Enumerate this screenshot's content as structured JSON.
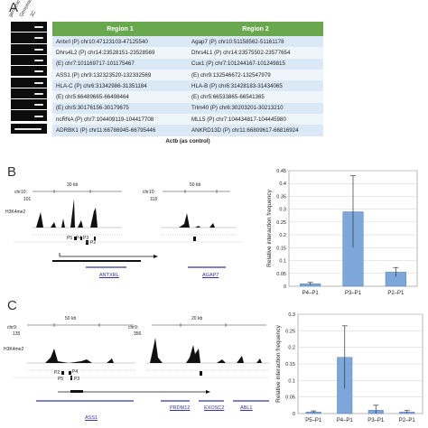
{
  "panel_a": {
    "letter": "A",
    "gel_lanes": [
      "genomic",
      "Genomic control",
      "3C"
    ],
    "table": {
      "headers": [
        "Region 1",
        "Region 2"
      ],
      "rows": [
        [
          "Antxrl (P) chr10:47123103-47125540",
          "Agap7 (P) chr10:51158562-51161178"
        ],
        [
          "Dhrs4L2 (P) chr14:23528151-23528569",
          "Dhrs4L1 (P) chr14:23575502-23577654"
        ],
        [
          "(E) chr7:101169717-101175467",
          "Cux1 (P) chr7:101244167-101249815"
        ],
        [
          "ASS1 (P) chr9:132323520-132332569",
          "(E) chr9:132546672-132547979"
        ],
        [
          "HLA-C (P) chr6:31342986-31351184",
          "HLA-B (P) chr6:31428183-31434065"
        ],
        [
          "(E) chr5:66489665-66498464",
          "(E) chr5:66533865-66541365"
        ],
        [
          "(E) chr5:30176156-30179675",
          "Trim40 (P) chr6:30203201-30213210"
        ],
        [
          "ncRNA (P) chr7:104409119-104417708",
          "MLL5 (P) chr7:104434817-104445980"
        ],
        [
          "ADRBK1 (P) chr11:66786945-66795446",
          "ANKRD13D (P) chr11:66809617-66816924"
        ]
      ],
      "footer": "Actb (as control)"
    }
  },
  "panel_b": {
    "letter": "B",
    "track1": {
      "chr": "chr10:",
      "max": "101",
      "scale": "30 kb",
      "mark": "H3K4me2"
    },
    "track2": {
      "chr": "chr10:",
      "max": "118",
      "scale": "50 kb"
    },
    "probes": [
      "P5",
      "P4",
      "P3",
      "P2"
    ],
    "genes": [
      "ANTXRL",
      "AGAP7"
    ]
  },
  "panel_c": {
    "letter": "C",
    "track1": {
      "chr": "chr9:",
      "max": "135",
      "scale": "50 kb",
      "mark": "H3K4me2"
    },
    "track2": {
      "chr": "chr9:",
      "max": "356",
      "scale": "20 kb"
    },
    "probes": [
      "P2",
      "P4",
      "P5",
      "P3"
    ],
    "genes": [
      "ASS1",
      "PRDM12",
      "EXOSC2",
      "ABL1"
    ]
  },
  "chart_data": [
    {
      "type": "bar",
      "categories": [
        "P4–P1",
        "P3–P1",
        "P2–P1"
      ],
      "values": [
        0.01,
        0.29,
        0.055
      ],
      "errors": [
        0.005,
        0.14,
        0.018
      ],
      "ylabel": "Relative interaction frequency",
      "ylim": [
        0,
        0.45
      ],
      "yticks": [
        0,
        0.05,
        0.1,
        0.15,
        0.2,
        0.25,
        0.3,
        0.35,
        0.4,
        0.45
      ],
      "bar_color": "#7da7d9",
      "grid": true
    },
    {
      "type": "bar",
      "categories": [
        "P5–P1",
        "P4–P1",
        "P3–P1",
        "P2–P1"
      ],
      "values": [
        0.005,
        0.17,
        0.01,
        0.005
      ],
      "errors": [
        0.003,
        0.095,
        0.015,
        0.004
      ],
      "ylabel": "Relative interaction frequency",
      "ylim": [
        0,
        0.3
      ],
      "yticks": [
        0,
        0.05,
        0.1,
        0.15,
        0.2,
        0.25,
        0.3
      ],
      "bar_color": "#7da7d9",
      "grid": true
    }
  ]
}
